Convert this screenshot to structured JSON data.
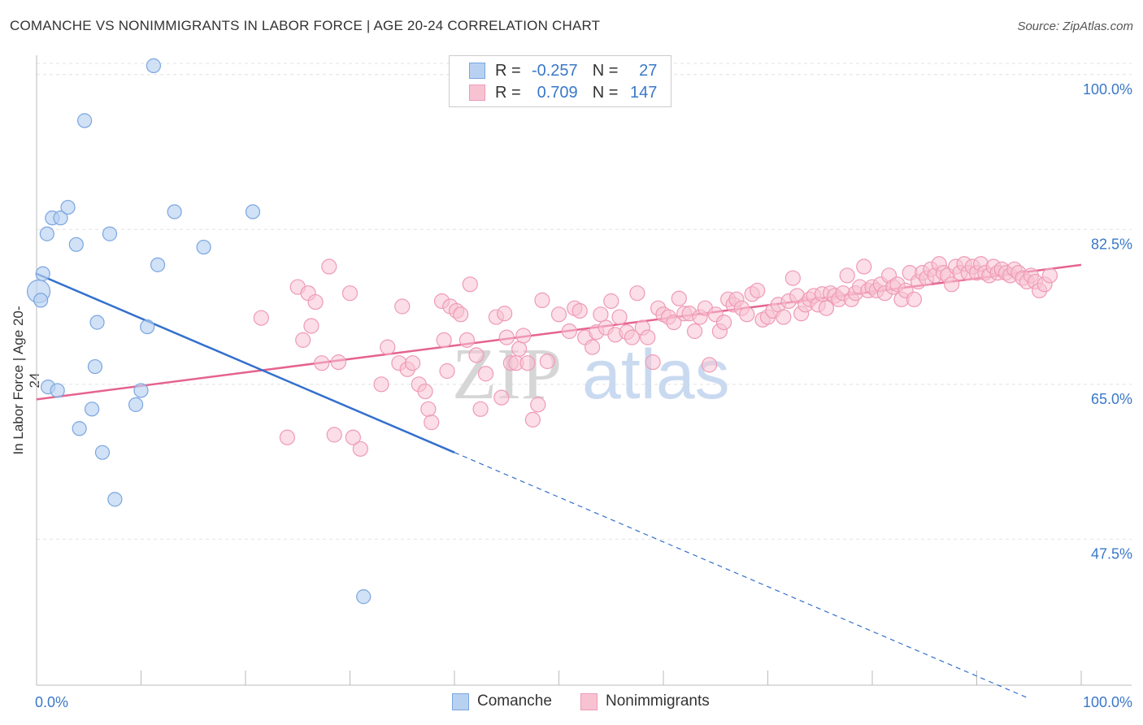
{
  "title": "COMANCHE VS NONIMMIGRANTS IN LABOR FORCE | AGE 20-24 CORRELATION CHART",
  "source": "Source: ZipAtlas.com",
  "watermark": {
    "zip": "ZIP",
    "atlas": "atlas"
  },
  "legend": {
    "r_label": "R =",
    "n_label": "N =",
    "comanche": {
      "r": "-0.257",
      "n": "27"
    },
    "nonimmigrants": {
      "r": "0.709",
      "n": "147"
    }
  },
  "colors": {
    "comanche_fill": "#b9d1f1",
    "comanche_stroke": "#7aa6e0",
    "comanche_line": "#3370cc",
    "nonimm_fill": "#f7c3d3",
    "nonimm_stroke": "#ef9ab5",
    "nonimm_line": "#e5638f",
    "axis_text": "#3a78c9"
  },
  "chart_data": {
    "type": "scatter",
    "xlabel": "",
    "ylabel": "In Labor Force | Age 20-24",
    "xlim": [
      0,
      100
    ],
    "ylim": [
      31,
      102
    ],
    "x_tick_labels": [
      "0.0%",
      "100.0%"
    ],
    "y_ticks": [
      47.5,
      65.0,
      82.5,
      100.0
    ],
    "y_tick_labels": [
      "47.5%",
      "65.0%",
      "82.5%",
      "100.0%"
    ],
    "series": [
      {
        "name": "Comanche",
        "points": [
          [
            0.2,
            75.5
          ],
          [
            0.4,
            74.5
          ],
          [
            0.6,
            77.5
          ],
          [
            1.0,
            82.0
          ],
          [
            1.1,
            64.7
          ],
          [
            1.5,
            83.8
          ],
          [
            2.0,
            64.3
          ],
          [
            2.3,
            83.8
          ],
          [
            3.0,
            85.0
          ],
          [
            3.8,
            80.8
          ],
          [
            4.1,
            60.0
          ],
          [
            4.6,
            94.8
          ],
          [
            5.3,
            62.2
          ],
          [
            5.6,
            67.0
          ],
          [
            5.8,
            72.0
          ],
          [
            6.3,
            57.3
          ],
          [
            7.0,
            82.0
          ],
          [
            7.5,
            52.0
          ],
          [
            9.5,
            62.7
          ],
          [
            10.0,
            64.3
          ],
          [
            10.6,
            71.5
          ],
          [
            11.2,
            101.0
          ],
          [
            11.6,
            78.5
          ],
          [
            13.2,
            84.5
          ],
          [
            16.0,
            80.5
          ],
          [
            20.7,
            84.5
          ],
          [
            31.3,
            41.0
          ]
        ],
        "trend": {
          "x0": 0,
          "y0": 77.5,
          "x1": 40,
          "y1": 57.3,
          "dash_to_x": 95,
          "dash_to_y": 29.5
        }
      },
      {
        "name": "Nonimmigrants",
        "points": [
          [
            21.5,
            72.5
          ],
          [
            24.0,
            59.0
          ],
          [
            25.0,
            76.0
          ],
          [
            25.5,
            70.0
          ],
          [
            26.0,
            75.3
          ],
          [
            26.3,
            71.6
          ],
          [
            26.7,
            74.3
          ],
          [
            27.3,
            67.4
          ],
          [
            28.0,
            78.3
          ],
          [
            28.5,
            59.3
          ],
          [
            28.9,
            67.5
          ],
          [
            30.0,
            75.3
          ],
          [
            30.3,
            59.0
          ],
          [
            31.0,
            57.7
          ],
          [
            33.0,
            65.0
          ],
          [
            33.6,
            69.2
          ],
          [
            34.7,
            67.4
          ],
          [
            35.0,
            73.8
          ],
          [
            35.5,
            66.7
          ],
          [
            36.0,
            67.4
          ],
          [
            36.6,
            65.0
          ],
          [
            37.2,
            64.2
          ],
          [
            37.5,
            62.2
          ],
          [
            37.8,
            60.7
          ],
          [
            38.8,
            74.4
          ],
          [
            39.0,
            70.0
          ],
          [
            39.3,
            66.5
          ],
          [
            39.6,
            73.8
          ],
          [
            40.2,
            73.3
          ],
          [
            40.6,
            72.9
          ],
          [
            41.2,
            70.0
          ],
          [
            41.5,
            76.3
          ],
          [
            42.1,
            68.3
          ],
          [
            42.5,
            62.2
          ],
          [
            43.0,
            66.2
          ],
          [
            44.0,
            72.6
          ],
          [
            44.5,
            63.5
          ],
          [
            44.8,
            73.0
          ],
          [
            45.0,
            70.3
          ],
          [
            45.4,
            67.4
          ],
          [
            45.9,
            67.4
          ],
          [
            46.2,
            69.0
          ],
          [
            46.6,
            70.5
          ],
          [
            47.0,
            67.4
          ],
          [
            47.5,
            61.0
          ],
          [
            48.0,
            62.7
          ],
          [
            48.4,
            74.5
          ],
          [
            48.9,
            67.6
          ],
          [
            50.0,
            72.9
          ],
          [
            51.0,
            71.0
          ],
          [
            51.5,
            73.6
          ],
          [
            52.0,
            73.3
          ],
          [
            52.5,
            70.3
          ],
          [
            53.2,
            69.2
          ],
          [
            53.6,
            70.9
          ],
          [
            54.0,
            72.9
          ],
          [
            54.5,
            71.4
          ],
          [
            55.0,
            74.4
          ],
          [
            55.4,
            70.6
          ],
          [
            55.8,
            72.6
          ],
          [
            56.5,
            70.9
          ],
          [
            57.0,
            70.3
          ],
          [
            57.5,
            75.3
          ],
          [
            58.0,
            71.4
          ],
          [
            58.5,
            70.3
          ],
          [
            59.0,
            67.5
          ],
          [
            59.5,
            73.6
          ],
          [
            60.0,
            72.9
          ],
          [
            60.5,
            72.6
          ],
          [
            61.0,
            72.0
          ],
          [
            61.5,
            74.7
          ],
          [
            62.0,
            73.0
          ],
          [
            62.5,
            73.0
          ],
          [
            63.0,
            71.0
          ],
          [
            63.5,
            72.6
          ],
          [
            64.0,
            73.6
          ],
          [
            64.4,
            67.2
          ],
          [
            65.0,
            72.9
          ],
          [
            65.4,
            71.0
          ],
          [
            65.8,
            72.0
          ],
          [
            66.2,
            74.6
          ],
          [
            66.7,
            74.0
          ],
          [
            67.0,
            74.6
          ],
          [
            67.5,
            73.6
          ],
          [
            68.0,
            72.9
          ],
          [
            68.5,
            75.2
          ],
          [
            69.0,
            75.6
          ],
          [
            69.5,
            72.3
          ],
          [
            70.0,
            72.6
          ],
          [
            70.5,
            73.3
          ],
          [
            71.0,
            74.0
          ],
          [
            71.5,
            72.6
          ],
          [
            72.0,
            74.4
          ],
          [
            72.4,
            77.0
          ],
          [
            72.8,
            75.0
          ],
          [
            73.2,
            73.0
          ],
          [
            73.6,
            74.0
          ],
          [
            74.0,
            74.6
          ],
          [
            74.4,
            75.0
          ],
          [
            74.8,
            74.0
          ],
          [
            75.2,
            75.2
          ],
          [
            75.6,
            73.6
          ],
          [
            76.0,
            75.3
          ],
          [
            76.4,
            75.0
          ],
          [
            76.8,
            74.6
          ],
          [
            77.2,
            75.3
          ],
          [
            77.6,
            77.3
          ],
          [
            78.0,
            74.6
          ],
          [
            78.4,
            75.3
          ],
          [
            78.8,
            76.0
          ],
          [
            79.2,
            78.3
          ],
          [
            79.6,
            75.6
          ],
          [
            80.0,
            76.0
          ],
          [
            80.4,
            75.6
          ],
          [
            80.8,
            76.3
          ],
          [
            81.2,
            75.3
          ],
          [
            81.6,
            77.3
          ],
          [
            82.0,
            76.0
          ],
          [
            82.4,
            76.3
          ],
          [
            82.8,
            74.6
          ],
          [
            83.2,
            75.6
          ],
          [
            83.6,
            77.6
          ],
          [
            84.0,
            74.6
          ],
          [
            84.4,
            76.6
          ],
          [
            84.8,
            77.6
          ],
          [
            85.2,
            77.0
          ],
          [
            85.6,
            78.0
          ],
          [
            86.0,
            77.3
          ],
          [
            86.4,
            78.6
          ],
          [
            86.8,
            77.6
          ],
          [
            87.2,
            77.3
          ],
          [
            87.6,
            76.3
          ],
          [
            88.0,
            78.3
          ],
          [
            88.4,
            77.6
          ],
          [
            88.8,
            78.6
          ],
          [
            89.2,
            77.6
          ],
          [
            89.6,
            78.3
          ],
          [
            90.0,
            77.6
          ],
          [
            90.4,
            78.6
          ],
          [
            90.8,
            77.6
          ],
          [
            91.2,
            77.3
          ],
          [
            91.6,
            78.3
          ],
          [
            92.0,
            77.6
          ],
          [
            92.4,
            78.0
          ],
          [
            92.8,
            77.6
          ],
          [
            93.2,
            77.3
          ],
          [
            93.6,
            78.0
          ],
          [
            94.0,
            77.6
          ],
          [
            94.4,
            77.0
          ],
          [
            94.8,
            76.6
          ],
          [
            95.2,
            77.3
          ],
          [
            95.6,
            76.6
          ],
          [
            96.0,
            75.6
          ],
          [
            96.5,
            76.3
          ],
          [
            97.0,
            77.3
          ]
        ],
        "trend": {
          "x0": 0,
          "y0": 63.3,
          "x1": 100,
          "y1": 78.5
        }
      }
    ]
  },
  "bottom_legend": {
    "comanche": "Comanche",
    "nonimmigrants": "Nonimmigrants"
  }
}
